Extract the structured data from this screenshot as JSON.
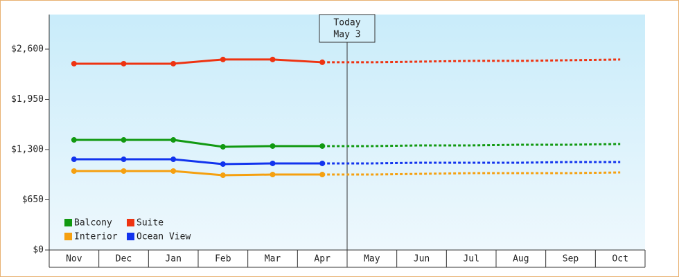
{
  "chart_data": {
    "type": "line",
    "categories": [
      "Nov",
      "Dec",
      "Jan",
      "Feb",
      "Mar",
      "Apr",
      "May",
      "Jun",
      "Jul",
      "Aug",
      "Sep",
      "Oct"
    ],
    "ylim": [
      0,
      3048
    ],
    "yticks": [
      {
        "value": 0,
        "label": "$0"
      },
      {
        "value": 650,
        "label": "$650"
      },
      {
        "value": 1300,
        "label": "$1,300"
      },
      {
        "value": 1950,
        "label": "$1,950"
      },
      {
        "value": 2600,
        "label": "$2,600"
      }
    ],
    "annotation": {
      "title": "Today",
      "date": "May 3",
      "category_index": 6
    },
    "series": [
      {
        "name": "Balcony",
        "color": "#119911",
        "values": [
          1425,
          1425,
          1425,
          1336,
          1345,
          1345,
          1345,
          1354,
          1354,
          1363,
          1363,
          1372
        ]
      },
      {
        "name": "Suite",
        "color": "#ee3311",
        "values": [
          2412,
          2412,
          2412,
          2466,
          2466,
          2430,
          2430,
          2439,
          2448,
          2448,
          2457,
          2466
        ]
      },
      {
        "name": "Interior",
        "color": "#f5a010",
        "values": [
          1022,
          1022,
          1022,
          968,
          977,
          977,
          977,
          986,
          995,
          995,
          995,
          1004
        ]
      },
      {
        "name": "Ocean View",
        "color": "#1133ee",
        "values": [
          1174,
          1174,
          1174,
          1112,
          1121,
          1121,
          1121,
          1130,
          1130,
          1130,
          1139,
          1139
        ]
      }
    ]
  }
}
